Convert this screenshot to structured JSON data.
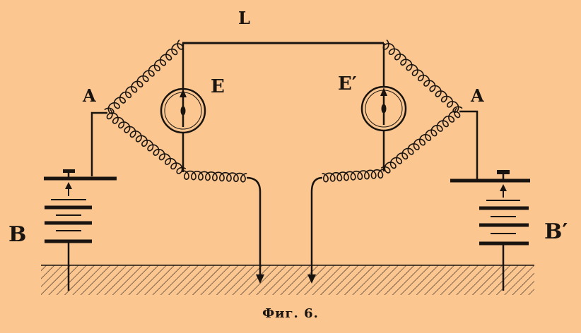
{
  "labels": {
    "line": "L",
    "galvanometer_left": "E",
    "galvanometer_right": "E′",
    "key_left": "A",
    "key_right": "A",
    "battery_left": "B",
    "battery_right": "B′"
  },
  "caption": "Фиг. 6.",
  "colors": {
    "paper": "#fbc690",
    "ink": "#1a1410"
  }
}
